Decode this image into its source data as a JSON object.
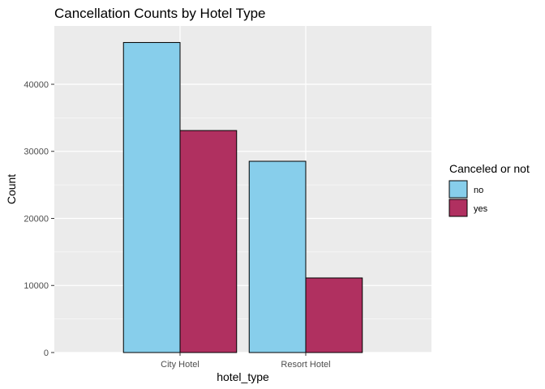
{
  "chart_data": {
    "type": "bar",
    "title": "Cancellation Counts by Hotel Type",
    "xlabel": "hotel_type",
    "ylabel": "Count",
    "categories": [
      "City Hotel",
      "Resort Hotel"
    ],
    "series": [
      {
        "name": "no",
        "values": [
          46228,
          28519
        ],
        "color": "#87CEEB"
      },
      {
        "name": "yes",
        "values": [
          33102,
          11120
        ],
        "color": "#B03060"
      }
    ],
    "ylim": [
      0,
      48700
    ],
    "yticks": [
      0,
      10000,
      20000,
      30000,
      40000
    ],
    "ytick_labels": [
      "0",
      "10000",
      "20000",
      "30000",
      "40000"
    ],
    "grid": true,
    "legend": {
      "title": "Canceled or not",
      "position": "right"
    },
    "panel_background": "#EBEBEB",
    "gridline_color": "#FFFFFF"
  }
}
